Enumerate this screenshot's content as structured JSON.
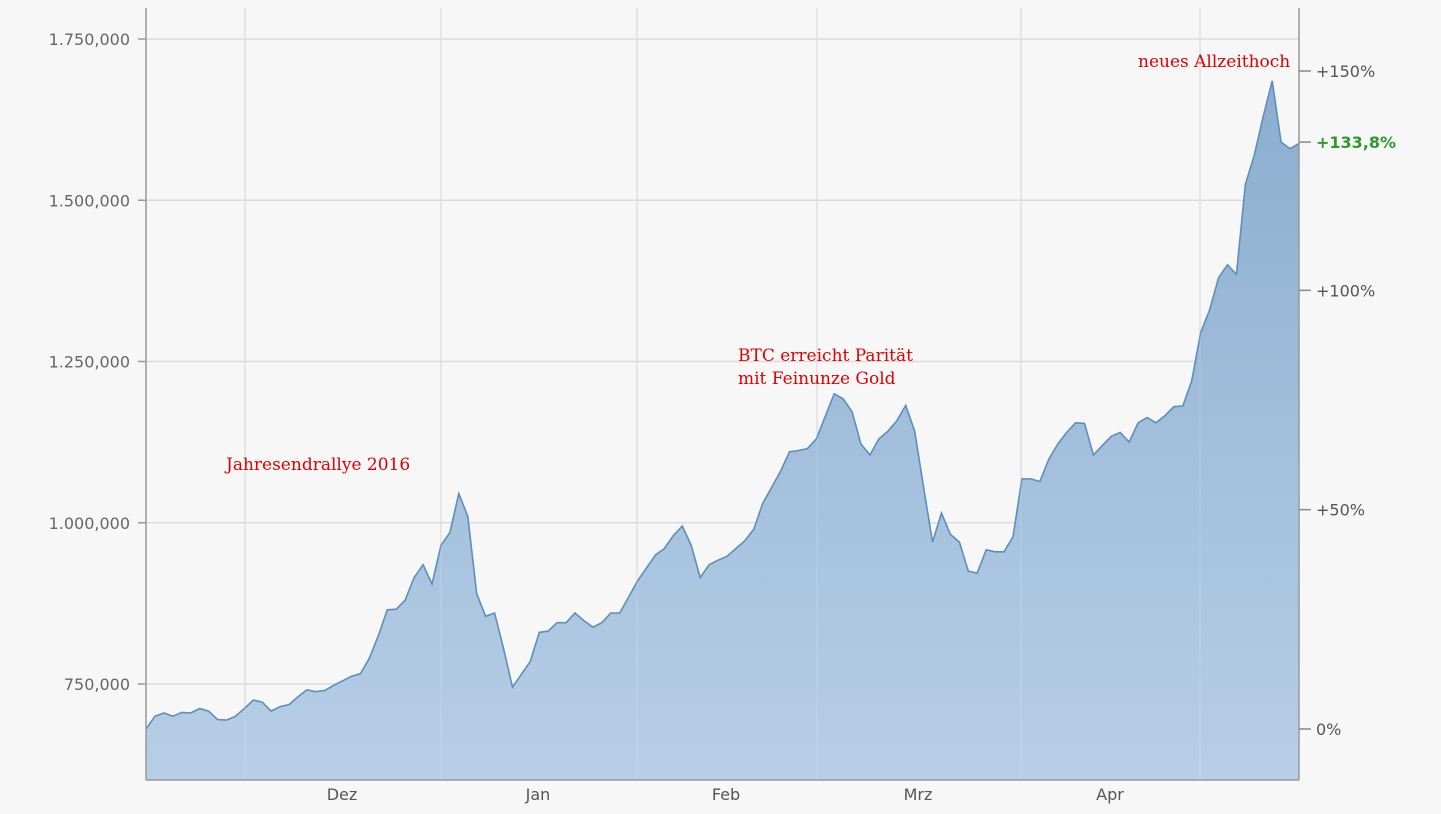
{
  "chart_data": {
    "type": "area",
    "title": "",
    "xlabel": "",
    "ylabel": "",
    "x_tick_labels": [
      "Dez",
      "Jan",
      "Feb",
      "Mrz",
      "Apr"
    ],
    "y_left": {
      "lim": [
        600000,
        1800000
      ],
      "ticks": [
        750000,
        1000000,
        1250000,
        1500000,
        1750000
      ],
      "tick_labels": [
        "750,000",
        "1.000,000",
        "1.250,000",
        "1.500,000",
        "1.750,000"
      ]
    },
    "y_right": {
      "ticks": [
        0,
        50,
        100,
        150
      ],
      "tick_labels": [
        "0%",
        "+50%",
        "+100%",
        "+150%"
      ],
      "current_value_label": "+133,8%",
      "current_value_pct": 133.8,
      "current_value_color": "#2e9a2e"
    },
    "grid": true,
    "series": [
      {
        "color": "#5b8fbf",
        "fill": "#a8c4de",
        "values": [
          680000,
          700000,
          705000,
          700000,
          706000,
          705000,
          712000,
          708000,
          695000,
          694000,
          700000,
          712000,
          725000,
          722000,
          708000,
          715000,
          718000,
          730000,
          741000,
          738000,
          740000,
          748000,
          755000,
          762000,
          766000,
          790000,
          825000,
          865000,
          866000,
          880000,
          915000,
          935000,
          905000,
          965000,
          985000,
          1045000,
          1010000,
          890000,
          855000,
          860000,
          805000,
          745000,
          765000,
          785000,
          830000,
          832000,
          845000,
          845000,
          860000,
          848000,
          838000,
          845000,
          860000,
          860000,
          885000,
          910000,
          930000,
          950000,
          960000,
          980000,
          995000,
          965000,
          915000,
          935000,
          942000,
          948000,
          960000,
          972000,
          990000,
          1030000,
          1055000,
          1080000,
          1110000,
          1112000,
          1115000,
          1130000,
          1165000,
          1200000,
          1192000,
          1172000,
          1122000,
          1105000,
          1130000,
          1142000,
          1158000,
          1182000,
          1142000,
          1055000,
          970000,
          1015000,
          982000,
          970000,
          925000,
          922000,
          958000,
          955000,
          955000,
          978000,
          1068000,
          1068000,
          1064000,
          1098000,
          1122000,
          1140000,
          1155000,
          1154000,
          1105000,
          1120000,
          1134000,
          1140000,
          1125000,
          1155000,
          1163000,
          1155000,
          1166000,
          1180000,
          1181000,
          1220000,
          1295000,
          1330000,
          1380000,
          1400000,
          1385000,
          1525000,
          1570000,
          1630000,
          1685000,
          1590000,
          1580000,
          1588000
        ]
      }
    ],
    "annotations": [
      {
        "text": "Jahresendrallye 2016"
      },
      {
        "text": "BTC erreicht Parität",
        "text2": "mit Feinunze Gold"
      },
      {
        "text": "neues Allzeithoch"
      }
    ]
  }
}
